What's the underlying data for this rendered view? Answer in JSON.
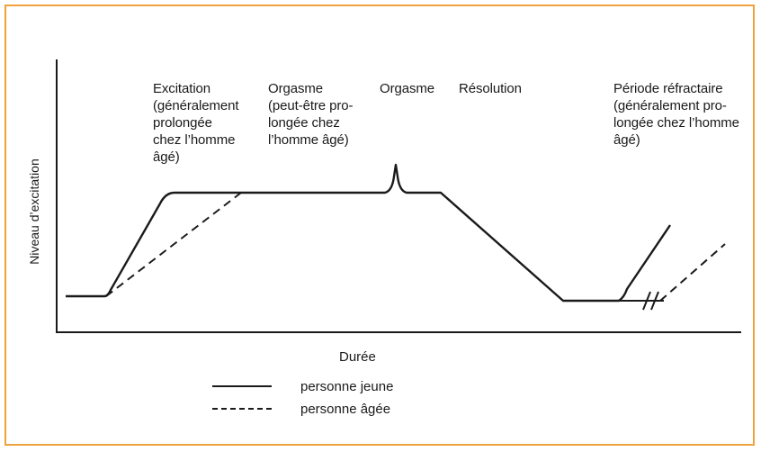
{
  "labels": {
    "excitation": "Excitation\n(généralement\nprolongée\nchez l’homme\nâgé)",
    "plateau": "Orgasme\n(peut-être pro-\nlongée chez\nl’homme âgé)",
    "orgasm": "Orgasme",
    "resolution": "Résolution",
    "refractory": "Période réfractaire\n(généralement pro-\nlongée chez l’homme\nâgé)"
  },
  "axes": {
    "x_label": "Durée",
    "y_label": "Niveau d’excitation"
  },
  "legend": {
    "young": "personne jeune",
    "old": "personne âgée"
  },
  "colors": {
    "frame": "#f0a33c",
    "ink": "#1a1a1a"
  }
}
